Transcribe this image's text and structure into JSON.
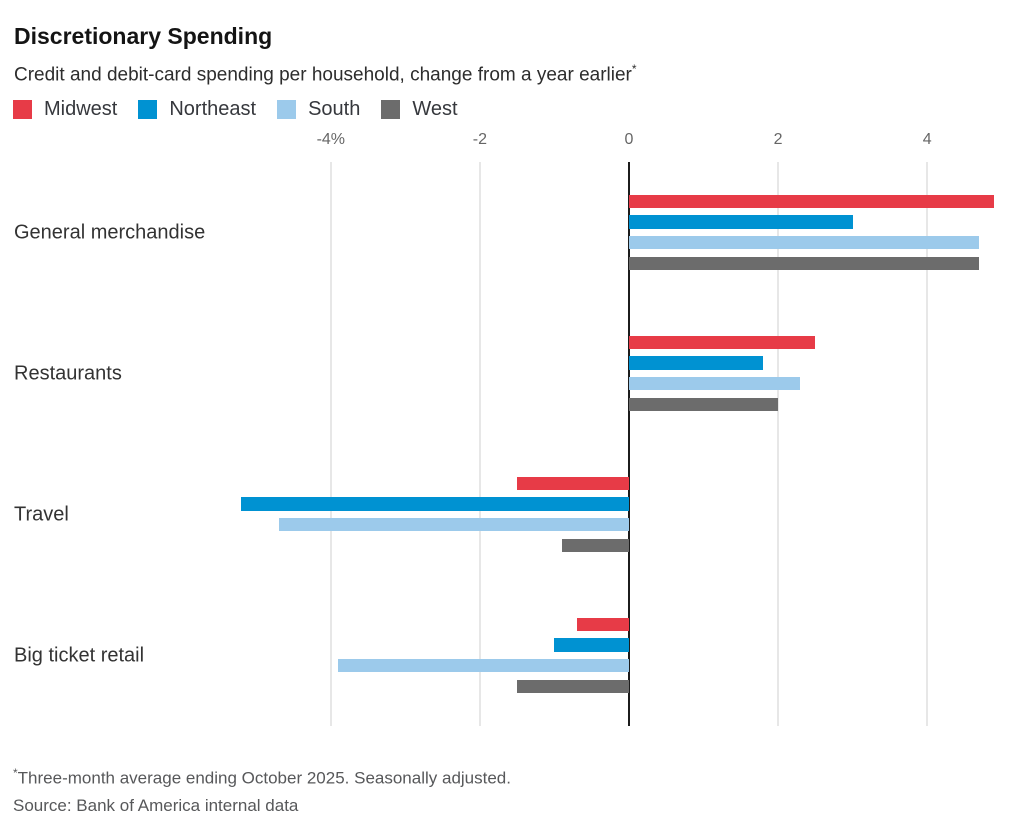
{
  "header": {
    "title": "Discretionary Spending",
    "subtitle": "Credit and debit-card spending per household, change from a year earlier",
    "footnote_marker": "*"
  },
  "chart_data": {
    "type": "bar",
    "orientation": "horizontal",
    "unit": "%",
    "categories": [
      "General merchandise",
      "Restaurants",
      "Travel",
      "Big ticket retail"
    ],
    "series": [
      {
        "name": "Midwest",
        "color": "#e73b47",
        "values": [
          4.9,
          2.5,
          -1.5,
          -0.7
        ]
      },
      {
        "name": "Northeast",
        "color": "#0092d2",
        "values": [
          3.0,
          1.8,
          -5.2,
          -1.0
        ]
      },
      {
        "name": "South",
        "color": "#9ccaeb",
        "values": [
          4.7,
          2.3,
          -4.7,
          -3.9
        ]
      },
      {
        "name": "West",
        "color": "#6c6c6c",
        "values": [
          4.7,
          2.0,
          -0.9,
          -1.5
        ]
      }
    ],
    "x_ticks": [
      {
        "value": -4,
        "label": "-4%"
      },
      {
        "value": -2,
        "label": "-2"
      },
      {
        "value": 0,
        "label": "0"
      },
      {
        "value": 2,
        "label": "2"
      },
      {
        "value": 4,
        "label": "4"
      }
    ],
    "xlim": [
      -5.5,
      5.1
    ],
    "grid": "vertical",
    "zero_line": true,
    "legend_position": "top",
    "gridline_color": "#e7e7e7",
    "zero_line_color": "#1c1c1c"
  },
  "footer": {
    "footnote_marker": "*",
    "footnote": "Three-month average ending October 2025. Seasonally adjusted.",
    "source": "Source: Bank of America internal data"
  }
}
